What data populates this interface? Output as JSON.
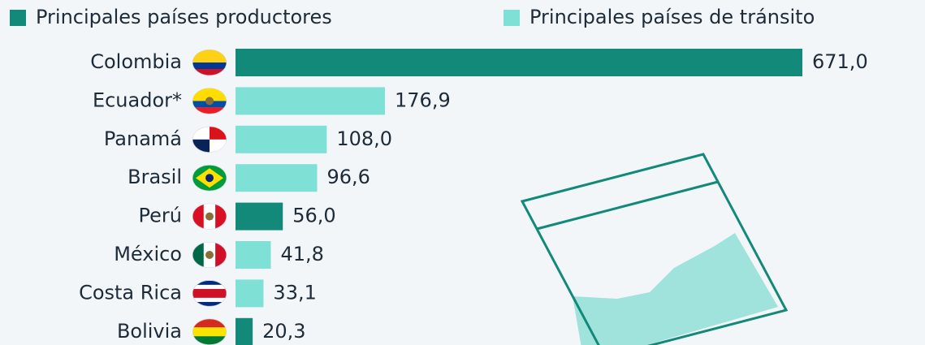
{
  "chart_data": {
    "type": "bar",
    "orientation": "horizontal",
    "categories": [
      "Colombia",
      "Ecuador*",
      "Panamá",
      "Brasil",
      "Perú",
      "México",
      "Costa Rica",
      "Bolivia"
    ],
    "series": [
      {
        "name": "Principales países productores",
        "color": "#13897a",
        "values": [
          671.0,
          null,
          null,
          null,
          56.0,
          null,
          null,
          20.3
        ],
        "value_labels": [
          "671,0",
          null,
          null,
          null,
          "56,0",
          null,
          null,
          "20,3"
        ]
      },
      {
        "name": "Principales países de tránsito",
        "color": "#7fe0d6",
        "values": [
          null,
          176.9,
          108.0,
          96.6,
          null,
          41.8,
          33.1,
          null
        ],
        "value_labels": [
          null,
          "176,9",
          "108,0",
          "96,6",
          null,
          "41,8",
          "33,1",
          null
        ]
      }
    ]
  }
}
